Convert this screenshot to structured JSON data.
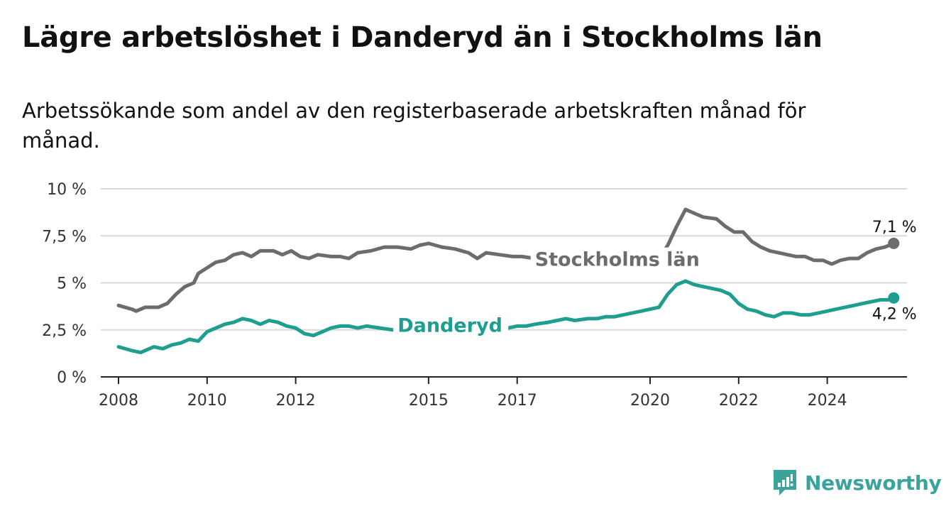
{
  "title": "Lägre arbetslöshet i Danderyd än i Stockholms län",
  "subtitle": "Arbetssökande som andel av den registerbaserade arbetskraften månad för månad.",
  "brand": {
    "name": "Newsworthy",
    "icon": "newsworthy-logo-icon",
    "color": "#3aa39b"
  },
  "chart_data": {
    "type": "line",
    "x_ticks": [
      2008,
      2010,
      2012,
      2015,
      2017,
      2020,
      2022,
      2024
    ],
    "y_ticks": [
      0,
      2.5,
      5,
      7.5,
      10
    ],
    "y_tick_labels": [
      "0 %",
      "2,5 %",
      "5 %",
      "7,5 %",
      "10 %"
    ],
    "ylim": [
      0,
      10
    ],
    "xlim": [
      2007.6,
      2025.8
    ],
    "grid": true,
    "series": [
      {
        "name": "Stockholms län",
        "color": "#6d6b6e",
        "end_label": "7,1 %",
        "label_at": [
          2017.4,
          5.9
        ],
        "points": [
          [
            2008.0,
            3.8
          ],
          [
            2008.3,
            3.6
          ],
          [
            2008.4,
            3.5
          ],
          [
            2008.6,
            3.7
          ],
          [
            2008.9,
            3.7
          ],
          [
            2009.1,
            3.9
          ],
          [
            2009.3,
            4.4
          ],
          [
            2009.5,
            4.8
          ],
          [
            2009.7,
            5.0
          ],
          [
            2009.8,
            5.5
          ],
          [
            2010.0,
            5.8
          ],
          [
            2010.2,
            6.1
          ],
          [
            2010.4,
            6.2
          ],
          [
            2010.6,
            6.5
          ],
          [
            2010.8,
            6.6
          ],
          [
            2011.0,
            6.4
          ],
          [
            2011.2,
            6.7
          ],
          [
            2011.5,
            6.7
          ],
          [
            2011.7,
            6.5
          ],
          [
            2011.9,
            6.7
          ],
          [
            2012.1,
            6.4
          ],
          [
            2012.3,
            6.3
          ],
          [
            2012.5,
            6.5
          ],
          [
            2012.8,
            6.4
          ],
          [
            2013.0,
            6.4
          ],
          [
            2013.2,
            6.3
          ],
          [
            2013.4,
            6.6
          ],
          [
            2013.7,
            6.7
          ],
          [
            2014.0,
            6.9
          ],
          [
            2014.3,
            6.9
          ],
          [
            2014.6,
            6.8
          ],
          [
            2014.8,
            7.0
          ],
          [
            2015.0,
            7.1
          ],
          [
            2015.3,
            6.9
          ],
          [
            2015.6,
            6.8
          ],
          [
            2015.9,
            6.6
          ],
          [
            2016.1,
            6.3
          ],
          [
            2016.3,
            6.6
          ],
          [
            2016.6,
            6.5
          ],
          [
            2016.9,
            6.4
          ],
          [
            2017.1,
            6.4
          ],
          [
            2017.4,
            6.3
          ],
          [
            2017.7,
            6.3
          ],
          [
            2018.0,
            6.2
          ],
          [
            2018.3,
            6.2
          ],
          [
            2018.5,
            6.1
          ],
          [
            2018.8,
            6.1
          ],
          [
            2019.1,
            6.1
          ],
          [
            2019.4,
            6.0
          ],
          [
            2019.7,
            6.0
          ],
          [
            2020.0,
            6.0
          ],
          [
            2020.2,
            6.3
          ],
          [
            2020.4,
            7.0
          ],
          [
            2020.6,
            8.0
          ],
          [
            2020.8,
            8.9
          ],
          [
            2021.0,
            8.7
          ],
          [
            2021.2,
            8.5
          ],
          [
            2021.5,
            8.4
          ],
          [
            2021.7,
            8.0
          ],
          [
            2021.9,
            7.7
          ],
          [
            2022.1,
            7.7
          ],
          [
            2022.3,
            7.2
          ],
          [
            2022.5,
            6.9
          ],
          [
            2022.7,
            6.7
          ],
          [
            2022.9,
            6.6
          ],
          [
            2023.1,
            6.5
          ],
          [
            2023.3,
            6.4
          ],
          [
            2023.5,
            6.4
          ],
          [
            2023.7,
            6.2
          ],
          [
            2023.9,
            6.2
          ],
          [
            2024.1,
            6.0
          ],
          [
            2024.3,
            6.2
          ],
          [
            2024.5,
            6.3
          ],
          [
            2024.7,
            6.3
          ],
          [
            2024.9,
            6.6
          ],
          [
            2025.1,
            6.8
          ],
          [
            2025.3,
            6.9
          ],
          [
            2025.5,
            7.1
          ]
        ]
      },
      {
        "name": "Danderyd",
        "color": "#1e9e8f",
        "end_label": "4,2 %",
        "label_at": [
          2014.3,
          2.4
        ],
        "points": [
          [
            2008.0,
            1.6
          ],
          [
            2008.3,
            1.4
          ],
          [
            2008.5,
            1.3
          ],
          [
            2008.8,
            1.6
          ],
          [
            2009.0,
            1.5
          ],
          [
            2009.2,
            1.7
          ],
          [
            2009.4,
            1.8
          ],
          [
            2009.6,
            2.0
          ],
          [
            2009.8,
            1.9
          ],
          [
            2010.0,
            2.4
          ],
          [
            2010.2,
            2.6
          ],
          [
            2010.4,
            2.8
          ],
          [
            2010.6,
            2.9
          ],
          [
            2010.8,
            3.1
          ],
          [
            2011.0,
            3.0
          ],
          [
            2011.2,
            2.8
          ],
          [
            2011.4,
            3.0
          ],
          [
            2011.6,
            2.9
          ],
          [
            2011.8,
            2.7
          ],
          [
            2012.0,
            2.6
          ],
          [
            2012.2,
            2.3
          ],
          [
            2012.4,
            2.2
          ],
          [
            2012.6,
            2.4
          ],
          [
            2012.8,
            2.6
          ],
          [
            2013.0,
            2.7
          ],
          [
            2013.2,
            2.7
          ],
          [
            2013.4,
            2.6
          ],
          [
            2013.6,
            2.7
          ],
          [
            2013.9,
            2.6
          ],
          [
            2014.2,
            2.5
          ],
          [
            2014.5,
            2.4
          ],
          [
            2014.8,
            2.5
          ],
          [
            2015.0,
            2.5
          ],
          [
            2015.2,
            2.4
          ],
          [
            2015.4,
            2.3
          ],
          [
            2015.6,
            2.4
          ],
          [
            2015.8,
            2.5
          ],
          [
            2016.0,
            2.3
          ],
          [
            2016.2,
            2.2
          ],
          [
            2016.4,
            2.2
          ],
          [
            2016.6,
            2.3
          ],
          [
            2016.8,
            2.6
          ],
          [
            2017.0,
            2.7
          ],
          [
            2017.2,
            2.7
          ],
          [
            2017.4,
            2.8
          ],
          [
            2017.7,
            2.9
          ],
          [
            2017.9,
            3.0
          ],
          [
            2018.1,
            3.1
          ],
          [
            2018.3,
            3.0
          ],
          [
            2018.6,
            3.1
          ],
          [
            2018.8,
            3.1
          ],
          [
            2019.0,
            3.2
          ],
          [
            2019.2,
            3.2
          ],
          [
            2019.4,
            3.3
          ],
          [
            2019.6,
            3.4
          ],
          [
            2019.8,
            3.5
          ],
          [
            2020.0,
            3.6
          ],
          [
            2020.2,
            3.7
          ],
          [
            2020.4,
            4.4
          ],
          [
            2020.6,
            4.9
          ],
          [
            2020.8,
            5.1
          ],
          [
            2021.0,
            4.9
          ],
          [
            2021.2,
            4.8
          ],
          [
            2021.4,
            4.7
          ],
          [
            2021.6,
            4.6
          ],
          [
            2021.8,
            4.4
          ],
          [
            2022.0,
            3.9
          ],
          [
            2022.2,
            3.6
          ],
          [
            2022.4,
            3.5
          ],
          [
            2022.6,
            3.3
          ],
          [
            2022.8,
            3.2
          ],
          [
            2023.0,
            3.4
          ],
          [
            2023.2,
            3.4
          ],
          [
            2023.4,
            3.3
          ],
          [
            2023.6,
            3.3
          ],
          [
            2023.8,
            3.4
          ],
          [
            2024.0,
            3.5
          ],
          [
            2024.2,
            3.6
          ],
          [
            2024.4,
            3.7
          ],
          [
            2024.6,
            3.8
          ],
          [
            2024.8,
            3.9
          ],
          [
            2025.0,
            4.0
          ],
          [
            2025.2,
            4.1
          ],
          [
            2025.4,
            4.1
          ],
          [
            2025.5,
            4.2
          ]
        ]
      }
    ]
  }
}
